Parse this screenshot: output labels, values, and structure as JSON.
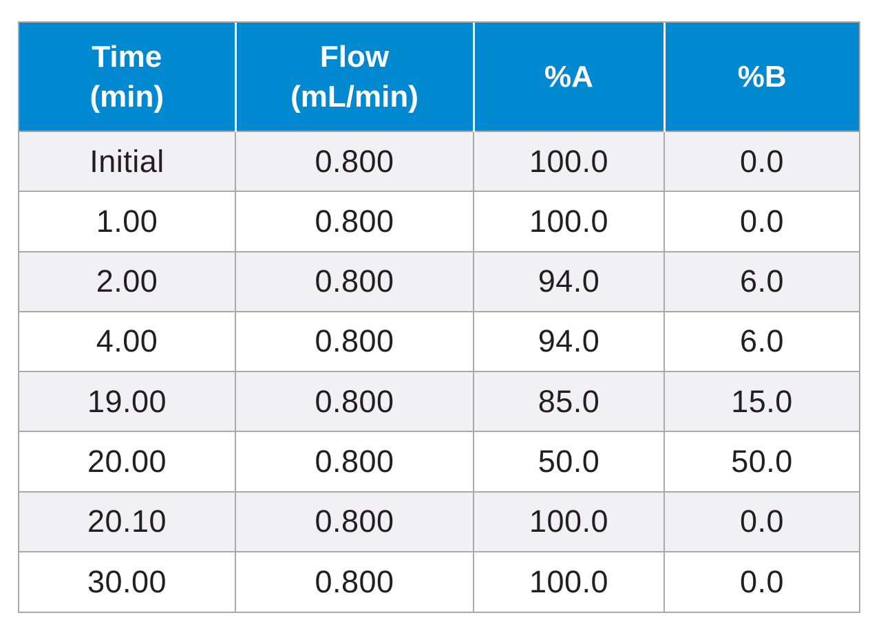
{
  "table": {
    "headers": [
      {
        "line1": "Time",
        "line2": "(min)"
      },
      {
        "line1": "Flow",
        "line2": "(mL/min)"
      },
      {
        "line1": "%A",
        "line2": ""
      },
      {
        "line1": "%B",
        "line2": ""
      }
    ],
    "rows": [
      [
        "Initial",
        "0.800",
        "100.0",
        "0.0"
      ],
      [
        "1.00",
        "0.800",
        "100.0",
        "0.0"
      ],
      [
        "2.00",
        "0.800",
        "94.0",
        "6.0"
      ],
      [
        "4.00",
        "0.800",
        "94.0",
        "6.0"
      ],
      [
        "19.00",
        "0.800",
        "85.0",
        "15.0"
      ],
      [
        "20.00",
        "0.800",
        "50.0",
        "50.0"
      ],
      [
        "20.10",
        "0.800",
        "100.0",
        "0.0"
      ],
      [
        "30.00",
        "0.800",
        "100.0",
        "0.0"
      ]
    ]
  },
  "colors": {
    "header_background": "#0089d0",
    "header_text": "#ffffff",
    "stripe_background": "#f1f1f3",
    "grid_line": "#a7a9ac",
    "body_text": "#231f20"
  }
}
